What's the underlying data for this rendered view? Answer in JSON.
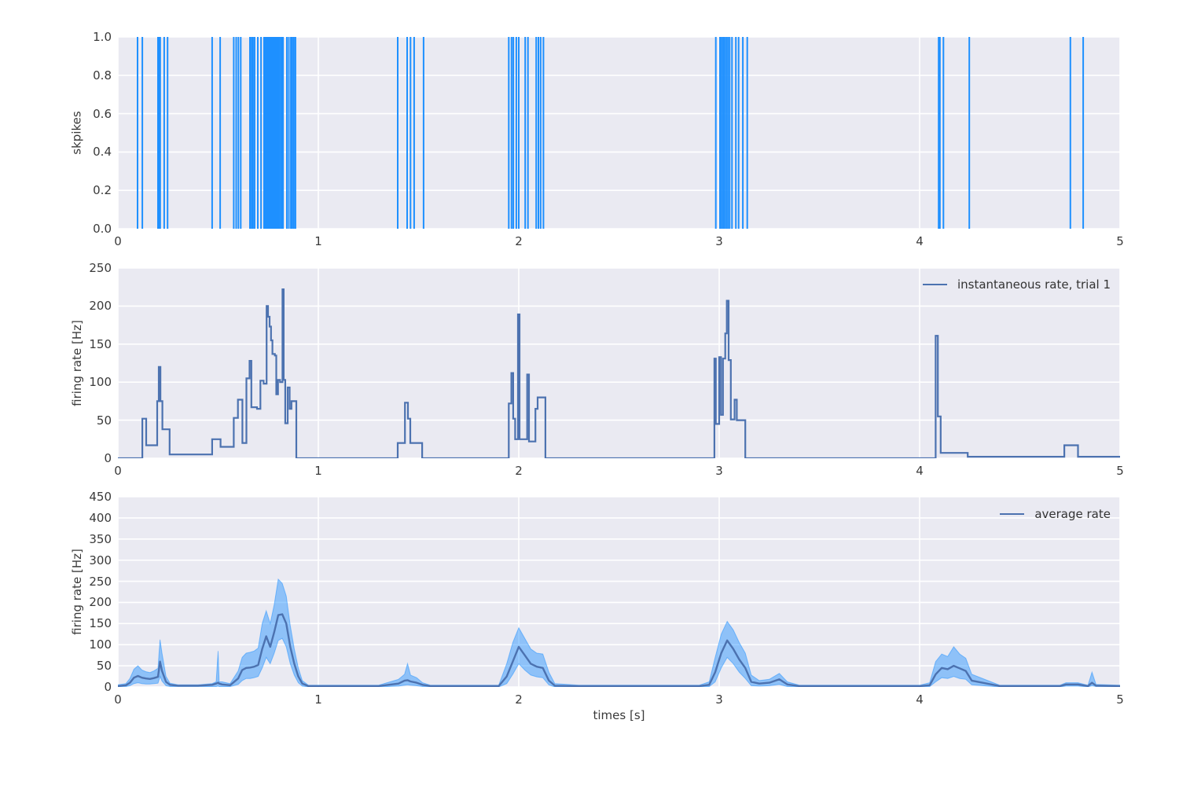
{
  "figure": {
    "background": "#ffffff",
    "axes_background": "#EAEAF2",
    "grid_color": "#ffffff",
    "tick_color": "#3a3a3a",
    "xlabel": "times [s]",
    "x_ticks": [
      0,
      1,
      2,
      3,
      4,
      5
    ],
    "x_tick_labels": [
      "0",
      "1",
      "2",
      "3",
      "4",
      "5"
    ]
  },
  "chart_data": [
    {
      "type": "event-raster",
      "ylabel": "skpikes",
      "x_range": [
        0,
        5
      ],
      "y_range": [
        0,
        1
      ],
      "y_ticks": [
        0.0,
        0.2,
        0.4,
        0.6,
        0.8,
        1.0
      ],
      "y_tick_labels": [
        "0.0",
        "0.2",
        "0.4",
        "0.6",
        "0.8",
        "1.0"
      ],
      "line_color": "#1E90FF",
      "spike_times": [
        0.098,
        0.122,
        0.2,
        0.205,
        0.211,
        0.231,
        0.248,
        0.47,
        0.51,
        0.578,
        0.59,
        0.601,
        0.613,
        0.659,
        0.667,
        0.674,
        0.682,
        0.698,
        0.714,
        0.729,
        0.735,
        0.741,
        0.747,
        0.752,
        0.757,
        0.762,
        0.767,
        0.772,
        0.777,
        0.782,
        0.788,
        0.794,
        0.8,
        0.807,
        0.814,
        0.82,
        0.824,
        0.843,
        0.853,
        0.863,
        0.87,
        0.878,
        0.886,
        1.396,
        1.443,
        1.46,
        1.478,
        1.525,
        1.95,
        1.964,
        1.973,
        1.988,
        2.0,
        2.032,
        2.046,
        2.087,
        2.098,
        2.109,
        2.123,
        2.983,
        3.004,
        3.012,
        3.02,
        3.028,
        3.036,
        3.044,
        3.052,
        3.064,
        3.083,
        3.097,
        3.118,
        3.14,
        4.095,
        4.101,
        4.119,
        4.248,
        4.752,
        4.816
      ]
    },
    {
      "type": "step-line",
      "legend_label": "instantaneous rate, trial 1",
      "ylabel": "firing rate [Hz]",
      "x_range": [
        0,
        5
      ],
      "y_range": [
        0,
        250
      ],
      "y_ticks": [
        0,
        50,
        100,
        150,
        200,
        250
      ],
      "y_tick_labels": [
        "0",
        "50",
        "100",
        "150",
        "200",
        "250"
      ],
      "line_color": "#4C72B0",
      "steps": [
        [
          0.0,
          0
        ],
        [
          0.122,
          52
        ],
        [
          0.141,
          17
        ],
        [
          0.196,
          75
        ],
        [
          0.204,
          120
        ],
        [
          0.212,
          75
        ],
        [
          0.222,
          38
        ],
        [
          0.258,
          5
        ],
        [
          0.47,
          25
        ],
        [
          0.512,
          15
        ],
        [
          0.578,
          53
        ],
        [
          0.599,
          77
        ],
        [
          0.621,
          20
        ],
        [
          0.641,
          105
        ],
        [
          0.657,
          128
        ],
        [
          0.666,
          67
        ],
        [
          0.694,
          65
        ],
        [
          0.711,
          102
        ],
        [
          0.727,
          98
        ],
        [
          0.742,
          200
        ],
        [
          0.749,
          186
        ],
        [
          0.757,
          173
        ],
        [
          0.764,
          155
        ],
        [
          0.771,
          137
        ],
        [
          0.783,
          135
        ],
        [
          0.79,
          84
        ],
        [
          0.799,
          103
        ],
        [
          0.809,
          100
        ],
        [
          0.821,
          222
        ],
        [
          0.827,
          103
        ],
        [
          0.835,
          46
        ],
        [
          0.847,
          93
        ],
        [
          0.857,
          65
        ],
        [
          0.866,
          75
        ],
        [
          0.89,
          0
        ],
        [
          1.396,
          20
        ],
        [
          1.432,
          73
        ],
        [
          1.447,
          52
        ],
        [
          1.459,
          20
        ],
        [
          1.518,
          0
        ],
        [
          1.95,
          72
        ],
        [
          1.963,
          112
        ],
        [
          1.972,
          52
        ],
        [
          1.982,
          25
        ],
        [
          1.996,
          189
        ],
        [
          2.004,
          25
        ],
        [
          2.042,
          110
        ],
        [
          2.051,
          22
        ],
        [
          2.083,
          65
        ],
        [
          2.094,
          80
        ],
        [
          2.133,
          0
        ],
        [
          2.976,
          131
        ],
        [
          2.983,
          45
        ],
        [
          3.0,
          133
        ],
        [
          3.009,
          57
        ],
        [
          3.019,
          131
        ],
        [
          3.03,
          164
        ],
        [
          3.038,
          207
        ],
        [
          3.047,
          129
        ],
        [
          3.058,
          51
        ],
        [
          3.077,
          77
        ],
        [
          3.088,
          50
        ],
        [
          3.13,
          0
        ],
        [
          4.08,
          161
        ],
        [
          4.091,
          55
        ],
        [
          4.105,
          7
        ],
        [
          4.24,
          2
        ],
        [
          4.722,
          17
        ],
        [
          4.79,
          2
        ],
        [
          5.0,
          2
        ]
      ]
    },
    {
      "type": "line-band",
      "legend_label": "average rate",
      "ylabel": "firing rate [Hz]",
      "x_range": [
        0,
        5
      ],
      "y_range": [
        0,
        450
      ],
      "y_ticks": [
        0,
        50,
        100,
        150,
        200,
        250,
        300,
        350,
        400,
        450
      ],
      "y_tick_labels": [
        "0",
        "50",
        "100",
        "150",
        "200",
        "250",
        "300",
        "350",
        "400",
        "450"
      ],
      "line_color": "#4C72B0",
      "band_color": "#1E90FF",
      "band_opacity": 0.45,
      "x": [
        0.0,
        0.04,
        0.06,
        0.08,
        0.1,
        0.12,
        0.14,
        0.16,
        0.18,
        0.2,
        0.21,
        0.22,
        0.24,
        0.26,
        0.3,
        0.4,
        0.47,
        0.49,
        0.5,
        0.505,
        0.52,
        0.56,
        0.6,
        0.62,
        0.64,
        0.66,
        0.68,
        0.7,
        0.72,
        0.74,
        0.76,
        0.78,
        0.8,
        0.82,
        0.84,
        0.86,
        0.88,
        0.9,
        0.92,
        0.95,
        1.0,
        1.3,
        1.4,
        1.43,
        1.445,
        1.46,
        1.49,
        1.52,
        1.56,
        1.7,
        1.9,
        1.94,
        1.97,
        2.0,
        2.03,
        2.06,
        2.09,
        2.12,
        2.15,
        2.18,
        2.3,
        2.9,
        2.95,
        2.98,
        3.01,
        3.04,
        3.07,
        3.1,
        3.13,
        3.16,
        3.2,
        3.25,
        3.3,
        3.34,
        3.4,
        3.7,
        4.0,
        4.05,
        4.08,
        4.11,
        4.14,
        4.17,
        4.2,
        4.23,
        4.26,
        4.4,
        4.7,
        4.73,
        4.79,
        4.84,
        4.86,
        4.88,
        5.0
      ],
      "mean": [
        2,
        4,
        10,
        22,
        26,
        22,
        20,
        19,
        21,
        24,
        60,
        38,
        12,
        5,
        3,
        3,
        5,
        8,
        10,
        8,
        6,
        4,
        20,
        40,
        45,
        46,
        48,
        52,
        90,
        120,
        95,
        130,
        170,
        172,
        150,
        95,
        55,
        25,
        8,
        2,
        2,
        2,
        8,
        15,
        16,
        13,
        10,
        5,
        2,
        2,
        2,
        25,
        60,
        95,
        75,
        55,
        48,
        45,
        15,
        3,
        2,
        2,
        5,
        35,
        80,
        110,
        90,
        65,
        45,
        12,
        8,
        10,
        18,
        6,
        2,
        2,
        2,
        4,
        30,
        45,
        42,
        50,
        44,
        38,
        15,
        2,
        2,
        6,
        6,
        2,
        10,
        3,
        2
      ],
      "upper": [
        5,
        8,
        20,
        42,
        50,
        40,
        36,
        34,
        38,
        44,
        112,
        80,
        25,
        9,
        5,
        5,
        8,
        12,
        85,
        12,
        12,
        8,
        38,
        70,
        80,
        82,
        85,
        92,
        150,
        180,
        150,
        195,
        255,
        245,
        215,
        145,
        90,
        45,
        15,
        4,
        4,
        4,
        18,
        30,
        55,
        28,
        22,
        10,
        4,
        4,
        4,
        55,
        105,
        140,
        115,
        90,
        80,
        78,
        35,
        8,
        4,
        4,
        12,
        70,
        125,
        155,
        135,
        105,
        80,
        28,
        15,
        18,
        32,
        12,
        4,
        4,
        4,
        10,
        60,
        78,
        72,
        95,
        78,
        68,
        30,
        4,
        4,
        10,
        10,
        4,
        35,
        6,
        4
      ],
      "lower": [
        0,
        1,
        3,
        8,
        10,
        8,
        7,
        7,
        8,
        9,
        25,
        14,
        3,
        1,
        1,
        1,
        1,
        1,
        2,
        1,
        1,
        1,
        6,
        15,
        20,
        20,
        22,
        25,
        45,
        70,
        55,
        80,
        110,
        115,
        95,
        55,
        28,
        10,
        2,
        0,
        0,
        0,
        2,
        4,
        5,
        4,
        3,
        1,
        0,
        0,
        0,
        8,
        30,
        55,
        40,
        28,
        24,
        22,
        5,
        0,
        0,
        0,
        1,
        12,
        45,
        70,
        55,
        35,
        20,
        3,
        2,
        3,
        6,
        1,
        0,
        0,
        0,
        1,
        12,
        22,
        20,
        25,
        20,
        18,
        5,
        0,
        0,
        2,
        2,
        0,
        3,
        1,
        0
      ]
    }
  ]
}
